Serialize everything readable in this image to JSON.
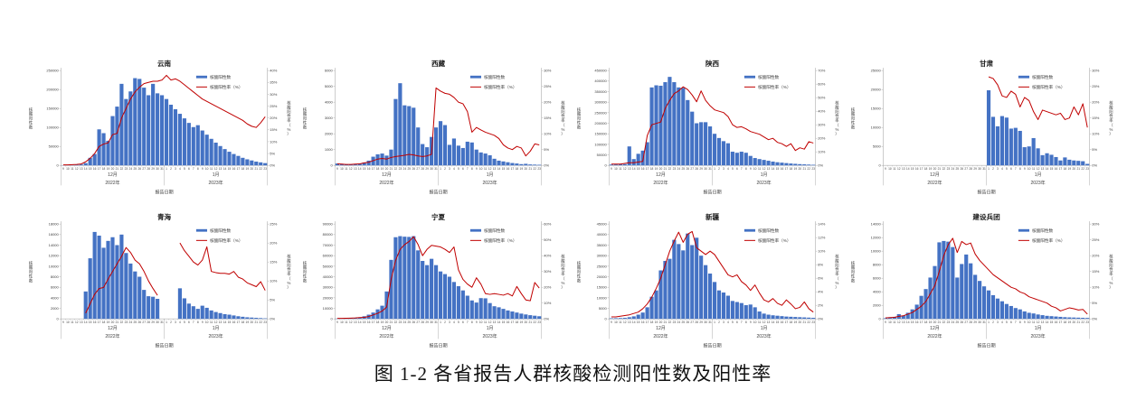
{
  "caption": "图 1-2 各省报告人群核酸检测阳性数及阳性率",
  "legend": {
    "bars_label": "核酸阳性数",
    "line_label": "核酸阳性率（%）"
  },
  "colors": {
    "bar": "#4472C4",
    "line": "#C00000",
    "axis": "#ADADAD",
    "text": "#404040"
  },
  "y_axes": {
    "left_label": "核酸阳性数",
    "right_label": "核酸阳性率（%）"
  },
  "x_axis": {
    "title": "报告日期",
    "days": [
      "9",
      "10",
      "11",
      "12",
      "13",
      "14",
      "15",
      "16",
      "17",
      "18",
      "19",
      "20",
      "21",
      "22",
      "23",
      "24",
      "25",
      "26",
      "27",
      "28",
      "29",
      "30",
      "31",
      "1",
      "2",
      "3",
      "4",
      "5",
      "6",
      "7",
      "8",
      "9",
      "10",
      "11",
      "12",
      "13",
      "14",
      "15",
      "16",
      "17",
      "18",
      "19",
      "20",
      "21",
      "22",
      "23"
    ],
    "month_groups": [
      {
        "month": "12月",
        "year": "2022年",
        "count": 23
      },
      {
        "month": "1月",
        "year": "2023年",
        "count": 23
      }
    ]
  },
  "chart_data": [
    {
      "type": "bar+line",
      "name": "yunnan",
      "title": "云南",
      "left_axis": {
        "max": 250000,
        "step": 50000
      },
      "right_axis": {
        "max": 40,
        "step": 5
      },
      "bars": [
        400,
        600,
        900,
        1400,
        2500,
        6000,
        20000,
        30000,
        95000,
        85000,
        65000,
        130000,
        155000,
        215000,
        175000,
        195000,
        230000,
        228000,
        205000,
        185000,
        215000,
        190000,
        185000,
        175000,
        160000,
        148000,
        136000,
        124000,
        112000,
        101000,
        106000,
        92000,
        81000,
        70000,
        60000,
        51000,
        43000,
        36000,
        30000,
        25000,
        20000,
        16000,
        13000,
        10000,
        8000,
        6000
      ],
      "rates": [
        0.2,
        0.2,
        0.3,
        0.4,
        0.6,
        1.5,
        3,
        5,
        8,
        9,
        9.5,
        13,
        13.5,
        20,
        24,
        28,
        31,
        33,
        34.5,
        35,
        35.5,
        35.5,
        36,
        38,
        36,
        36.5,
        35.5,
        34,
        32.5,
        31,
        29.5,
        28,
        27,
        26,
        25,
        24,
        23,
        22,
        21,
        20,
        19,
        17.5,
        16.5,
        16,
        18,
        20.5
      ]
    },
    {
      "type": "bar+line",
      "name": "xizang",
      "title": "西藏",
      "left_axis": {
        "max": 6000,
        "step": 1000
      },
      "right_axis": {
        "max": 30,
        "step": 5
      },
      "bars": [
        120,
        100,
        60,
        50,
        80,
        120,
        180,
        300,
        550,
        700,
        750,
        620,
        1000,
        4200,
        5200,
        3800,
        3750,
        3650,
        2400,
        1350,
        1150,
        1800,
        2400,
        2800,
        2550,
        1300,
        1700,
        1250,
        1100,
        1500,
        1450,
        1000,
        820,
        750,
        640,
        420,
        300,
        250,
        200,
        150,
        120,
        80,
        100,
        60,
        50,
        40
      ],
      "rates": [
        0.5,
        0.4,
        0.3,
        0.3,
        0.4,
        0.5,
        0.8,
        1,
        1.5,
        2,
        2.2,
        2,
        2.5,
        2.8,
        3,
        3.2,
        3.5,
        3.3,
        3,
        2.8,
        3,
        3.5,
        24.5,
        23.5,
        22.8,
        22.5,
        21.5,
        20,
        19.5,
        17,
        10.5,
        12,
        11.2,
        10.5,
        10,
        9.5,
        8.5,
        6.5,
        5.5,
        5,
        6,
        5.5,
        3,
        4.5,
        6.8,
        6.5
      ]
    },
    {
      "type": "bar+line",
      "name": "shaanxi",
      "title": "陕西",
      "left_axis": {
        "max": 450000,
        "step": 50000
      },
      "right_axis": {
        "max": 70,
        "step": 10
      },
      "bars": [
        4000,
        4500,
        5000,
        6000,
        90000,
        30000,
        55000,
        70000,
        110000,
        370000,
        380000,
        378000,
        395000,
        420000,
        395000,
        370000,
        368000,
        310000,
        255000,
        200000,
        205000,
        205000,
        185000,
        150000,
        130000,
        115000,
        105000,
        65000,
        60000,
        65000,
        60000,
        45000,
        35000,
        30000,
        26000,
        22000,
        18000,
        15000,
        13000,
        11000,
        9000,
        7500,
        6000,
        5000,
        4000,
        3000
      ],
      "rates": [
        1,
        1,
        1,
        1.5,
        2,
        2,
        2.5,
        3,
        22,
        30,
        31,
        32,
        42,
        48,
        53,
        55,
        58,
        56,
        52,
        47,
        55,
        48,
        44,
        41,
        40,
        39,
        36,
        30,
        28,
        28.5,
        27,
        25,
        24,
        23,
        21,
        19,
        20,
        17,
        16,
        14,
        16,
        11,
        13,
        12,
        17.5,
        16.5
      ]
    },
    {
      "type": "bar+line",
      "name": "gansu",
      "title": "甘肃",
      "left_axis": {
        "max": 25000,
        "step": 5000
      },
      "right_axis": {
        "max": 30,
        "step": 5
      },
      "bars": [
        0,
        0,
        0,
        0,
        0,
        0,
        0,
        0,
        0,
        0,
        0,
        0,
        0,
        0,
        0,
        0,
        0,
        0,
        0,
        0,
        0,
        0,
        0,
        19800,
        12800,
        10300,
        13000,
        12600,
        9700,
        9900,
        9100,
        4800,
        5000,
        7200,
        4500,
        2700,
        3200,
        2800,
        2200,
        1300,
        2100,
        1500,
        1300,
        1200,
        1100,
        400
      ],
      "rates": [
        null,
        null,
        null,
        null,
        null,
        null,
        null,
        null,
        null,
        null,
        null,
        null,
        null,
        null,
        null,
        null,
        null,
        null,
        null,
        null,
        null,
        null,
        null,
        28,
        27.5,
        25.5,
        22,
        21.5,
        23.5,
        22.5,
        18.5,
        21.5,
        20.5,
        17,
        14.5,
        17.5,
        17,
        16.5,
        16,
        16.5,
        14.5,
        15,
        18.5,
        16,
        19.5,
        12
      ]
    },
    {
      "type": "bar+line",
      "name": "qinghai",
      "title": "青海",
      "left_axis": {
        "max": 18000,
        "step": 2000
      },
      "right_axis": {
        "max": 25,
        "step": 5
      },
      "bars": [
        0,
        0,
        0,
        0,
        0,
        5200,
        11500,
        16500,
        15800,
        13500,
        14800,
        15500,
        14000,
        16000,
        12500,
        10500,
        9000,
        8000,
        5500,
        4300,
        4200,
        3800,
        0,
        0,
        0,
        0,
        5800,
        3900,
        2900,
        2400,
        1900,
        2500,
        2100,
        1600,
        1300,
        1100,
        900,
        800,
        650,
        500,
        400,
        300,
        250,
        200,
        150,
        100
      ],
      "rates": [
        null,
        null,
        null,
        null,
        null,
        1.5,
        4,
        6.5,
        8,
        8.3,
        10.5,
        12.5,
        14.5,
        16.5,
        18.8,
        17.5,
        15.5,
        14.5,
        12.5,
        10,
        8,
        6.2,
        null,
        null,
        null,
        null,
        20,
        18,
        16.5,
        15,
        14.2,
        15.5,
        19,
        12.5,
        12.2,
        12,
        12,
        11.8,
        12.5,
        11,
        10.5,
        9.5,
        9,
        8.5,
        9.8,
        7.5
      ]
    },
    {
      "type": "bar+line",
      "name": "ningxia",
      "title": "宁夏",
      "left_axis": {
        "max": 90000,
        "step": 10000
      },
      "right_axis": {
        "max": 60,
        "step": 10
      },
      "bars": [
        300,
        400,
        500,
        700,
        900,
        1400,
        2500,
        4000,
        6000,
        9000,
        12500,
        26000,
        56000,
        77500,
        78500,
        78000,
        77800,
        78500,
        65000,
        55000,
        51000,
        57000,
        51000,
        45000,
        42500,
        40000,
        35000,
        31000,
        27000,
        22000,
        17500,
        15500,
        19700,
        19500,
        15000,
        12000,
        11000,
        9500,
        8000,
        7000,
        6000,
        5000,
        4200,
        3500,
        3000,
        2500
      ],
      "rates": [
        0.3,
        0.3,
        0.4,
        0.5,
        0.6,
        0.8,
        1,
        1.5,
        2.5,
        3.5,
        5,
        7.5,
        25,
        37,
        44,
        47,
        49,
        52,
        47,
        40,
        44,
        46.5,
        46,
        45.5,
        44,
        42,
        45.5,
        31,
        25,
        22,
        20,
        26,
        22,
        16,
        15.5,
        16,
        15.5,
        15,
        16,
        14.5,
        20.5,
        16,
        12,
        11.5,
        23,
        19.5
      ]
    },
    {
      "type": "bar+line",
      "name": "xinjiang",
      "title": "新疆",
      "left_axis": {
        "max": 45000,
        "step": 5000
      },
      "right_axis": {
        "max": 14,
        "step": 2
      },
      "bars": [
        300,
        350,
        400,
        500,
        800,
        1200,
        2000,
        3000,
        5500,
        10500,
        13500,
        23000,
        27500,
        28500,
        37500,
        35500,
        32500,
        40500,
        35000,
        38500,
        30000,
        25500,
        21500,
        17500,
        13500,
        12500,
        11000,
        8500,
        8000,
        7500,
        6500,
        6800,
        5500,
        3500,
        2500,
        2000,
        1700,
        1500,
        1300,
        1100,
        1000,
        900,
        800,
        700,
        600,
        500
      ],
      "rates": [
        0.3,
        0.3,
        0.4,
        0.5,
        0.6,
        0.8,
        1,
        1.5,
        2.2,
        3.2,
        4.5,
        6,
        8,
        10,
        11.5,
        12.8,
        11.3,
        12.5,
        12.9,
        10.5,
        10,
        9.5,
        10,
        9.5,
        8.5,
        7.5,
        6.5,
        6.2,
        6.5,
        5.5,
        5,
        4.2,
        5,
        3.8,
        2.8,
        2.5,
        3,
        2.3,
        2,
        2.8,
        2.2,
        1.5,
        1.7,
        2.5,
        1.5,
        1
      ]
    },
    {
      "type": "bar+line",
      "name": "bingtuan",
      "title": "建设兵团",
      "left_axis": {
        "max": 14000,
        "step": 2000
      },
      "right_axis": {
        "max": 30,
        "step": 5
      },
      "bars": [
        100,
        150,
        300,
        700,
        500,
        900,
        1400,
        2100,
        3400,
        4400,
        6100,
        7800,
        11300,
        11500,
        11400,
        10600,
        6100,
        8100,
        9500,
        8200,
        6500,
        5600,
        4800,
        4200,
        3500,
        3000,
        2600,
        2200,
        1900,
        1600,
        1400,
        1100,
        900,
        800,
        650,
        550,
        450,
        400,
        350,
        300,
        250,
        220,
        200,
        180,
        160,
        140
      ],
      "rates": [
        0.3,
        0.4,
        0.5,
        0.8,
        1,
        1.5,
        2,
        3,
        4,
        5.5,
        8,
        10.5,
        15,
        20,
        23.5,
        25.5,
        21,
        24.5,
        23.5,
        24,
        20.5,
        18.5,
        17,
        15.5,
        14,
        13,
        12,
        11,
        10,
        9.5,
        8.5,
        8,
        7,
        6.5,
        6,
        5.5,
        5,
        4,
        3.5,
        2.5,
        3,
        3.5,
        3.2,
        2.8,
        3,
        1.5
      ]
    }
  ]
}
